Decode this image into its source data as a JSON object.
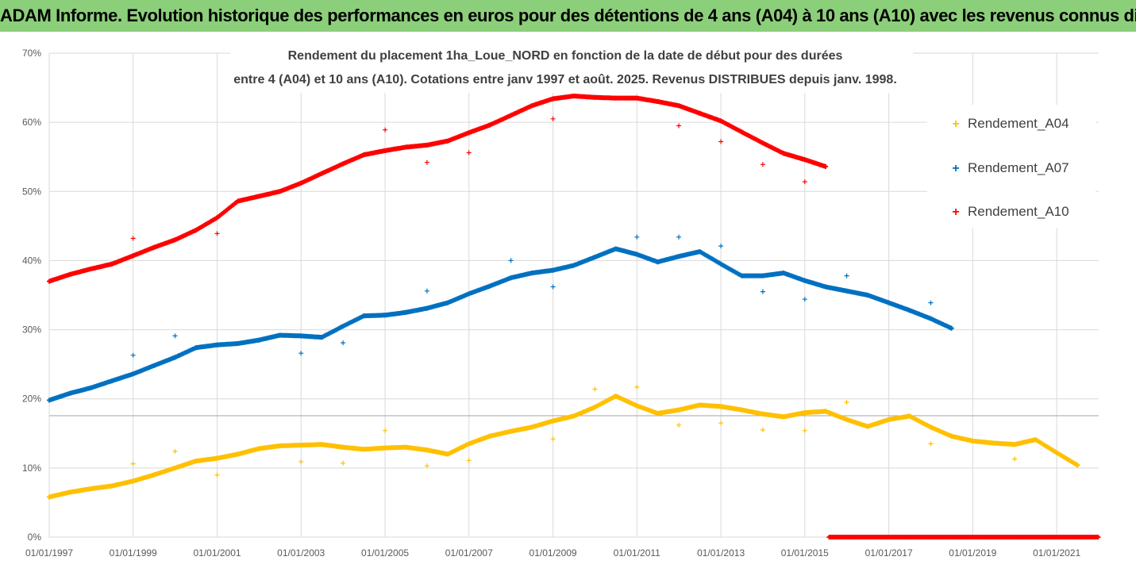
{
  "banner": {
    "title": "ADAM Informe. Evolution historique des performances en euros pour des détentions de 4 ans (A04) à 10 ans (A10) avec les revenus connus distribués"
  },
  "chart_data": {
    "type": "scatter",
    "title_line1": "Rendement du placement 1ha_Loue_NORD en fonction de la date de début pour des durées",
    "title_line2": "entre 4 (A04) et 10 ans (A10). Cotations entre janv 1997 et août. 2025. Revenus DISTRIBUES depuis janv. 1998.",
    "xlabel": "",
    "ylabel": "",
    "x_range": [
      "1997-01-01",
      "2022-01-01"
    ],
    "y_range": [
      0,
      70
    ],
    "y_unit": "%",
    "x_ticks": [
      "01/01/1997",
      "01/01/1999",
      "01/01/2001",
      "01/01/2003",
      "01/01/2005",
      "01/01/2007",
      "01/01/2009",
      "01/01/2011",
      "01/01/2013",
      "01/01/2015",
      "01/01/2017",
      "01/01/2019",
      "01/01/2021"
    ],
    "y_ticks": [
      "0%",
      "10%",
      "20%",
      "30%",
      "40%",
      "50%",
      "60%",
      "70%"
    ],
    "grid": true,
    "legend_position": "right",
    "colors": {
      "A04": "#ffc000",
      "A07": "#0070c0",
      "A10": "#ff0000"
    },
    "series": [
      {
        "name": "Rendement_A04",
        "key": "A04",
        "points": [
          [
            "1997-01-01",
            5.8
          ],
          [
            "1997-07-01",
            6.5
          ],
          [
            "1998-01-01",
            7.0
          ],
          [
            "1998-07-01",
            7.4
          ],
          [
            "1999-01-01",
            8.1
          ],
          [
            "1999-07-01",
            9.0
          ],
          [
            "2000-01-01",
            10.0
          ],
          [
            "2000-07-01",
            11.0
          ],
          [
            "2001-01-01",
            11.4
          ],
          [
            "2001-07-01",
            12.0
          ],
          [
            "2002-01-01",
            12.8
          ],
          [
            "2002-07-01",
            13.2
          ],
          [
            "2003-01-01",
            13.3
          ],
          [
            "2003-07-01",
            13.4
          ],
          [
            "2004-01-01",
            13.0
          ],
          [
            "2004-07-01",
            12.7
          ],
          [
            "2005-01-01",
            12.9
          ],
          [
            "2005-07-01",
            13.0
          ],
          [
            "2006-01-01",
            12.6
          ],
          [
            "2006-07-01",
            12.0
          ],
          [
            "2007-01-01",
            13.5
          ],
          [
            "2007-07-01",
            14.6
          ],
          [
            "2008-01-01",
            15.3
          ],
          [
            "2008-07-01",
            15.9
          ],
          [
            "2009-01-01",
            16.8
          ],
          [
            "2009-07-01",
            17.5
          ],
          [
            "2010-01-01",
            18.8
          ],
          [
            "2010-07-01",
            20.4
          ],
          [
            "2011-01-01",
            19.0
          ],
          [
            "2011-07-01",
            17.9
          ],
          [
            "2012-01-01",
            18.4
          ],
          [
            "2012-07-01",
            19.1
          ],
          [
            "2013-01-01",
            18.9
          ],
          [
            "2013-07-01",
            18.4
          ],
          [
            "2014-01-01",
            17.8
          ],
          [
            "2014-07-01",
            17.4
          ],
          [
            "2015-01-01",
            18.0
          ],
          [
            "2015-07-01",
            18.2
          ],
          [
            "2016-01-01",
            17.0
          ],
          [
            "2016-07-01",
            16.0
          ],
          [
            "2017-01-01",
            17.0
          ],
          [
            "2017-07-01",
            17.5
          ],
          [
            "2018-01-01",
            15.9
          ],
          [
            "2018-07-01",
            14.6
          ],
          [
            "2019-01-01",
            13.9
          ],
          [
            "2019-07-01",
            13.6
          ],
          [
            "2020-01-01",
            13.4
          ],
          [
            "2020-07-01",
            14.1
          ],
          [
            "2021-01-01",
            12.2
          ],
          [
            "2021-07-01",
            10.4
          ]
        ],
        "outliers": [
          [
            "1999-01-01",
            10.6
          ],
          [
            "2000-01-01",
            12.4
          ],
          [
            "2001-01-01",
            9.0
          ],
          [
            "2003-01-01",
            10.9
          ],
          [
            "2004-01-01",
            10.7
          ],
          [
            "2005-01-01",
            15.4
          ],
          [
            "2006-01-01",
            10.3
          ],
          [
            "2007-01-01",
            11.1
          ],
          [
            "2009-01-01",
            14.2
          ],
          [
            "2010-01-01",
            21.4
          ],
          [
            "2011-01-01",
            21.7
          ],
          [
            "2012-01-01",
            16.2
          ],
          [
            "2013-01-01",
            16.5
          ],
          [
            "2014-01-01",
            15.5
          ],
          [
            "2015-01-01",
            15.4
          ],
          [
            "2016-01-01",
            19.5
          ],
          [
            "2018-01-01",
            13.5
          ],
          [
            "2020-01-01",
            11.3
          ]
        ]
      },
      {
        "name": "Rendement_A07",
        "key": "A07",
        "points": [
          [
            "1997-01-01",
            19.8
          ],
          [
            "1997-07-01",
            20.8
          ],
          [
            "1998-01-01",
            21.6
          ],
          [
            "1998-07-01",
            22.6
          ],
          [
            "1999-01-01",
            23.6
          ],
          [
            "1999-07-01",
            24.8
          ],
          [
            "2000-01-01",
            26.0
          ],
          [
            "2000-07-01",
            27.4
          ],
          [
            "2001-01-01",
            27.8
          ],
          [
            "2001-07-01",
            28.0
          ],
          [
            "2002-01-01",
            28.5
          ],
          [
            "2002-07-01",
            29.2
          ],
          [
            "2003-01-01",
            29.1
          ],
          [
            "2003-07-01",
            28.9
          ],
          [
            "2004-01-01",
            30.5
          ],
          [
            "2004-07-01",
            32.0
          ],
          [
            "2005-01-01",
            32.1
          ],
          [
            "2005-07-01",
            32.5
          ],
          [
            "2006-01-01",
            33.1
          ],
          [
            "2006-07-01",
            33.9
          ],
          [
            "2007-01-01",
            35.2
          ],
          [
            "2007-07-01",
            36.3
          ],
          [
            "2008-01-01",
            37.5
          ],
          [
            "2008-07-01",
            38.2
          ],
          [
            "2009-01-01",
            38.6
          ],
          [
            "2009-07-01",
            39.3
          ],
          [
            "2010-01-01",
            40.5
          ],
          [
            "2010-07-01",
            41.7
          ],
          [
            "2011-01-01",
            40.9
          ],
          [
            "2011-07-01",
            39.8
          ],
          [
            "2012-01-01",
            40.6
          ],
          [
            "2012-07-01",
            41.3
          ],
          [
            "2013-01-01",
            39.5
          ],
          [
            "2013-07-01",
            37.8
          ],
          [
            "2014-01-01",
            37.8
          ],
          [
            "2014-07-01",
            38.2
          ],
          [
            "2015-01-01",
            37.1
          ],
          [
            "2015-07-01",
            36.2
          ],
          [
            "2016-01-01",
            35.6
          ],
          [
            "2016-07-01",
            35.0
          ],
          [
            "2017-01-01",
            33.9
          ],
          [
            "2017-07-01",
            32.8
          ],
          [
            "2018-01-01",
            31.6
          ],
          [
            "2018-07-01",
            30.2
          ]
        ],
        "outliers": [
          [
            "1999-01-01",
            26.3
          ],
          [
            "2000-01-01",
            29.1
          ],
          [
            "2003-01-01",
            26.6
          ],
          [
            "2004-01-01",
            28.1
          ],
          [
            "2006-01-01",
            35.6
          ],
          [
            "2008-01-01",
            40.0
          ],
          [
            "2009-01-01",
            36.2
          ],
          [
            "2011-01-01",
            43.4
          ],
          [
            "2012-01-01",
            43.4
          ],
          [
            "2013-01-01",
            42.1
          ],
          [
            "2014-01-01",
            35.5
          ],
          [
            "2015-01-01",
            34.4
          ],
          [
            "2016-01-01",
            37.8
          ],
          [
            "2018-01-01",
            33.9
          ]
        ]
      },
      {
        "name": "Rendement_A10",
        "key": "A10",
        "points": [
          [
            "1997-01-01",
            37.0
          ],
          [
            "1997-07-01",
            38.0
          ],
          [
            "1998-01-01",
            38.8
          ],
          [
            "1998-07-01",
            39.5
          ],
          [
            "1999-01-01",
            40.7
          ],
          [
            "1999-07-01",
            41.9
          ],
          [
            "2000-01-01",
            43.0
          ],
          [
            "2000-07-01",
            44.4
          ],
          [
            "2001-01-01",
            46.2
          ],
          [
            "2001-07-01",
            48.6
          ],
          [
            "2002-01-01",
            49.3
          ],
          [
            "2002-07-01",
            50.0
          ],
          [
            "2003-01-01",
            51.2
          ],
          [
            "2003-07-01",
            52.6
          ],
          [
            "2004-01-01",
            54.0
          ],
          [
            "2004-07-01",
            55.3
          ],
          [
            "2005-01-01",
            55.9
          ],
          [
            "2005-07-01",
            56.4
          ],
          [
            "2006-01-01",
            56.7
          ],
          [
            "2006-07-01",
            57.3
          ],
          [
            "2007-01-01",
            58.5
          ],
          [
            "2007-07-01",
            59.6
          ],
          [
            "2008-01-01",
            61.0
          ],
          [
            "2008-07-01",
            62.4
          ],
          [
            "2009-01-01",
            63.4
          ],
          [
            "2009-07-01",
            63.8
          ],
          [
            "2010-01-01",
            63.6
          ],
          [
            "2010-07-01",
            63.5
          ],
          [
            "2011-01-01",
            63.5
          ],
          [
            "2011-07-01",
            63.0
          ],
          [
            "2012-01-01",
            62.4
          ],
          [
            "2012-07-01",
            61.3
          ],
          [
            "2013-01-01",
            60.2
          ],
          [
            "2013-07-01",
            58.6
          ],
          [
            "2014-01-01",
            57.0
          ],
          [
            "2014-07-01",
            55.5
          ],
          [
            "2015-01-01",
            54.6
          ],
          [
            "2015-07-01",
            53.6
          ]
        ],
        "outliers": [
          [
            "1999-01-01",
            43.2
          ],
          [
            "2001-01-01",
            43.9
          ],
          [
            "2005-01-01",
            58.9
          ],
          [
            "2006-01-01",
            54.2
          ],
          [
            "2007-01-01",
            55.6
          ],
          [
            "2009-01-01",
            60.5
          ],
          [
            "2012-01-01",
            59.5
          ],
          [
            "2013-01-01",
            57.2
          ],
          [
            "2014-01-01",
            53.9
          ],
          [
            "2015-01-01",
            51.4
          ]
        ],
        "zero_run": {
          "from": "2015-08-01",
          "to": "2022-01-01",
          "value": 0
        }
      }
    ]
  }
}
